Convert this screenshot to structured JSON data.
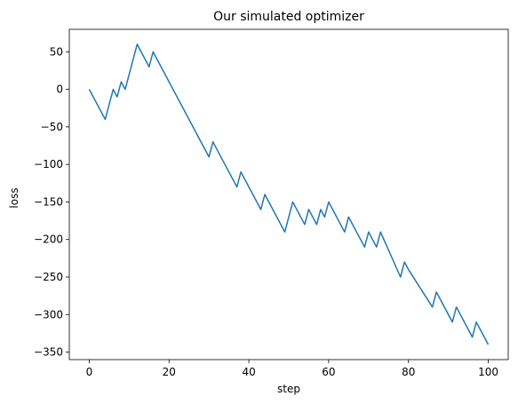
{
  "chart_data": {
    "type": "line",
    "title": "Our simulated optimizer",
    "xlabel": "step",
    "ylabel": "loss",
    "xlim": [
      -5,
      105
    ],
    "ylim": [
      -360,
      80
    ],
    "xticks": [
      0,
      20,
      40,
      60,
      80,
      100
    ],
    "yticks": [
      -350,
      -300,
      -250,
      -200,
      -150,
      -100,
      -50,
      0,
      50
    ],
    "grid": false,
    "series": [
      {
        "color": "#1f77b4",
        "x": [
          0,
          4,
          6,
          7,
          8,
          9,
          12,
          15,
          16,
          30,
          31,
          37,
          38,
          43,
          44,
          49,
          51,
          54,
          55,
          57,
          58,
          59,
          60,
          64,
          65,
          69,
          70,
          72,
          73,
          78,
          79,
          80,
          86,
          87,
          91,
          92,
          96,
          97,
          100
        ],
        "y": [
          0,
          -40,
          0,
          -10,
          10,
          0,
          60,
          30,
          50,
          -90,
          -70,
          -130,
          -110,
          -160,
          -140,
          -190,
          -150,
          -180,
          -160,
          -180,
          -160,
          -170,
          -150,
          -190,
          -170,
          -210,
          -190,
          -210,
          -190,
          -250,
          -230,
          -240,
          -290,
          -270,
          -310,
          -290,
          -330,
          -310,
          -340
        ]
      }
    ]
  }
}
